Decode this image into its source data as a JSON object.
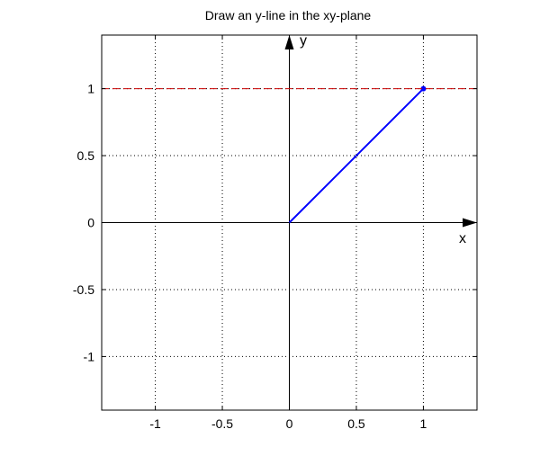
{
  "chart_data": {
    "type": "line",
    "title": "Draw an y-line in the xy-plane",
    "xlim": [
      -1.4,
      1.4
    ],
    "ylim": [
      -1.4,
      1.4
    ],
    "x_ticks": [
      -1,
      -0.5,
      0,
      0.5,
      1
    ],
    "x_tick_labels": [
      "-1",
      "-0.5",
      "0",
      "0.5",
      "1"
    ],
    "y_ticks": [
      -1,
      -0.5,
      0,
      0.5,
      1
    ],
    "y_tick_labels": [
      "-1",
      "-0.5",
      "0",
      "0.5",
      "1"
    ],
    "grid": true,
    "grid_style": "dotted",
    "axis_arrows": {
      "x_label": "x",
      "y_label": "y"
    },
    "series": [
      {
        "type": "line",
        "x": [
          0,
          1
        ],
        "y": [
          0,
          1
        ],
        "color": "#0000ff",
        "marker_at_end": true
      },
      {
        "type": "hline",
        "y": 1,
        "color": "#cc0000",
        "style": "dashed"
      }
    ]
  }
}
